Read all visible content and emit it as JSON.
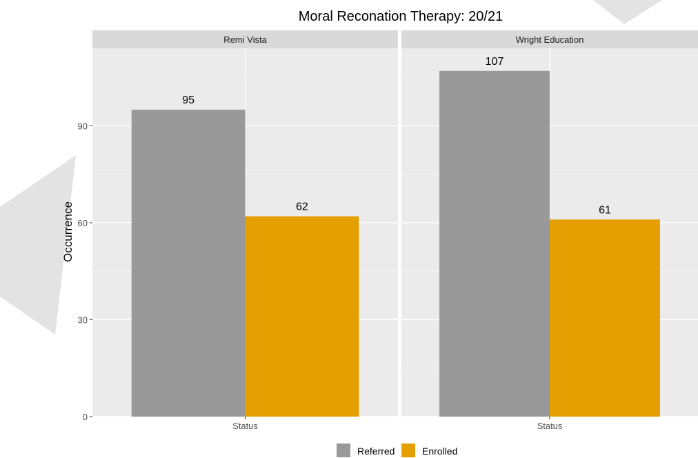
{
  "chart_data": {
    "type": "bar",
    "title": "Moral Reconation Therapy: 20/21",
    "ylabel": "Occurrence",
    "ylim": [
      0,
      114
    ],
    "yticks": [
      0,
      30,
      60,
      90
    ],
    "grid": true,
    "legend_position": "bottom",
    "series": [
      {
        "name": "Referred",
        "color": "#999999"
      },
      {
        "name": "Enrolled",
        "color": "#E69F00"
      }
    ],
    "panels": [
      {
        "facet": "Remi Vista",
        "xlabel": "Status",
        "values": [
          95,
          62
        ]
      },
      {
        "facet": "Wright Education",
        "xlabel": "Status",
        "values": [
          107,
          61
        ]
      }
    ]
  }
}
